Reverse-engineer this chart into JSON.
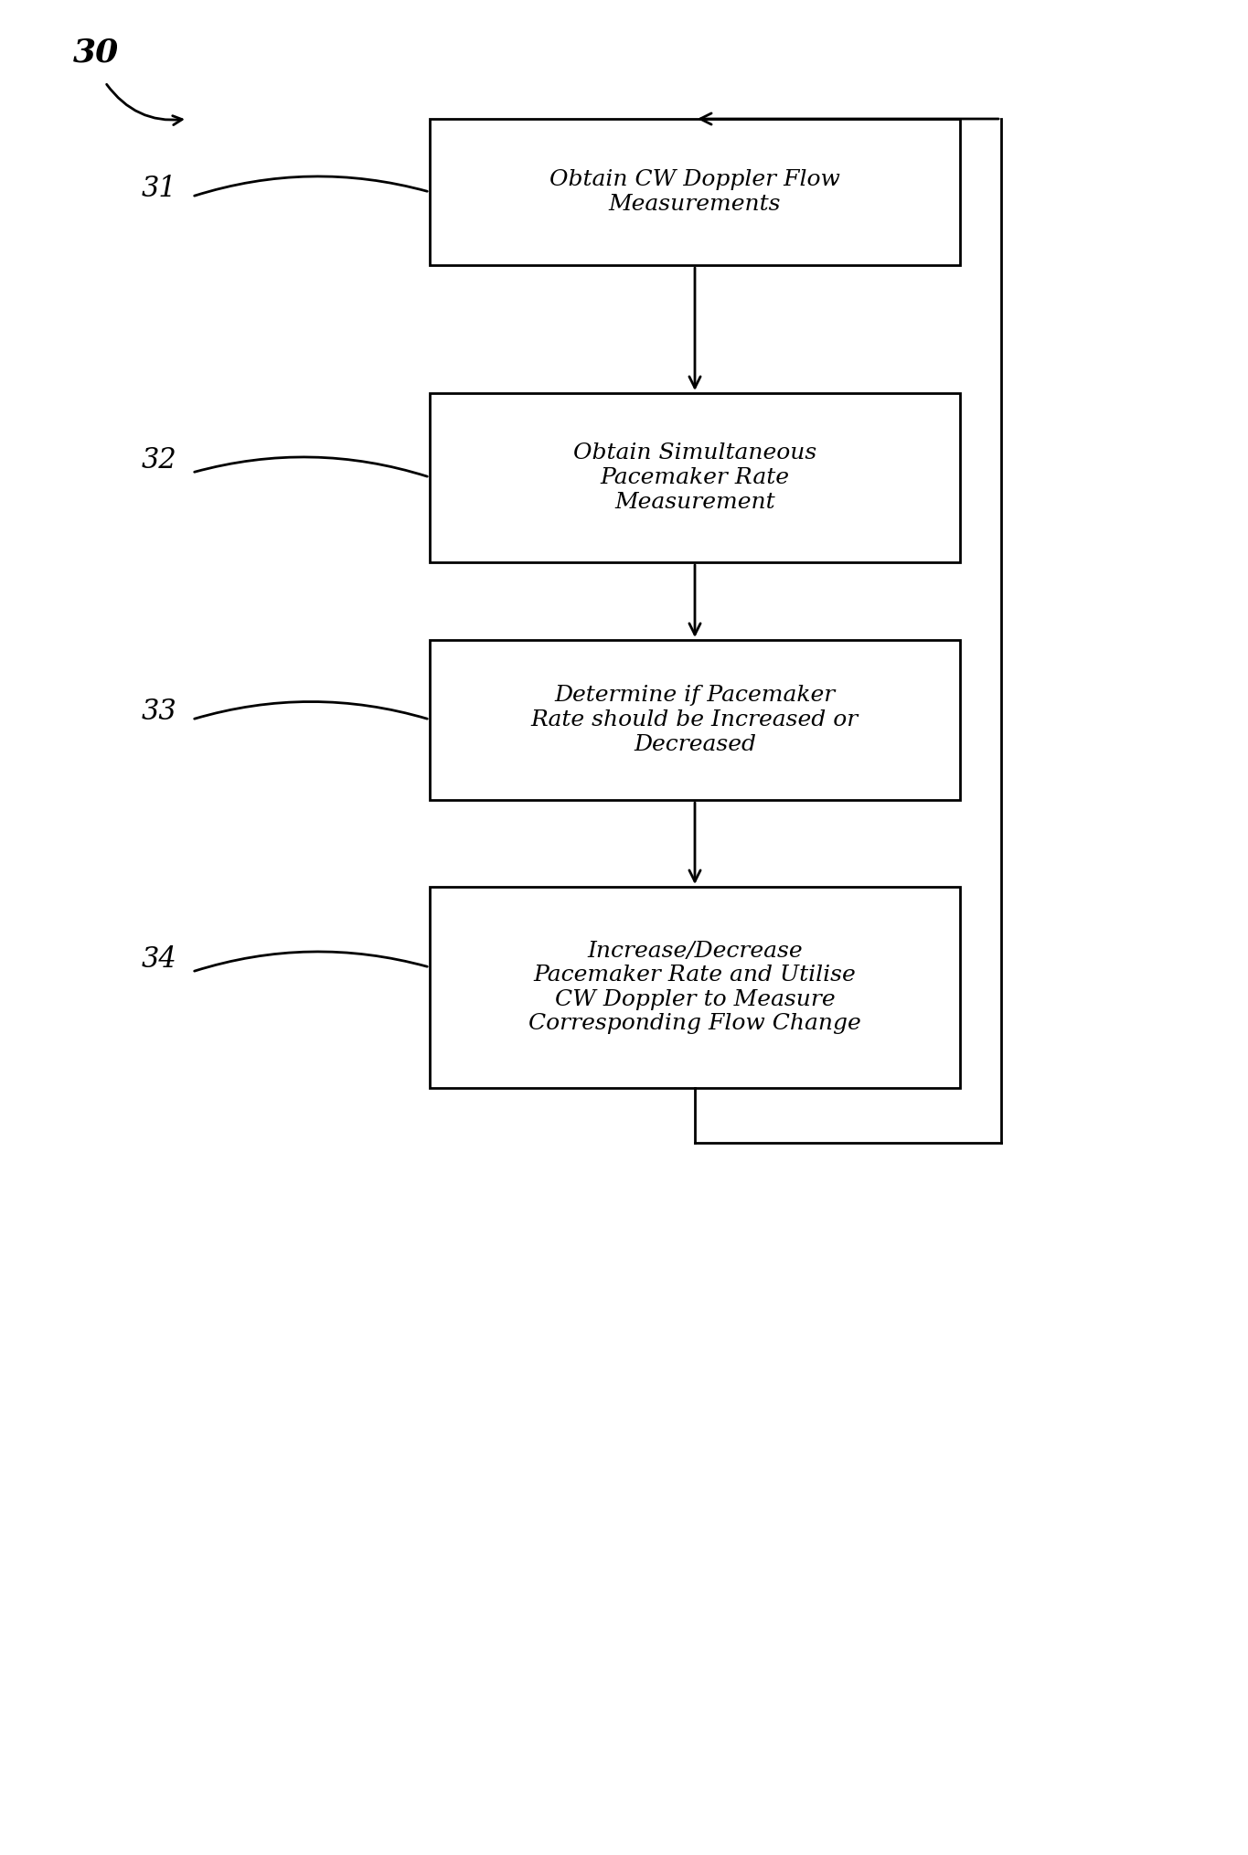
{
  "figure_width": 13.65,
  "figure_height": 20.29,
  "background_color": "#ffffff",
  "label_30": "30",
  "label_31": "31",
  "label_32": "32",
  "label_33": "33",
  "label_34": "34",
  "box1_text": "Obtain CW Doppler Flow\nMeasurements",
  "box2_text": "Obtain Simultaneous\nPacemaker Rate\nMeasurement",
  "box3_text": "Determine if Pacemaker\nRate should be Increased or\nDecreased",
  "box4_text": "Increase/Decrease\nPacemaker Rate and Utilise\nCW Doppler to Measure\nCorresponding Flow Change",
  "box_edge_color": "#000000",
  "box_fill_color": "#ffffff",
  "arrow_color": "#000000",
  "text_color": "#000000",
  "font_size": 18,
  "label_font_size": 22
}
